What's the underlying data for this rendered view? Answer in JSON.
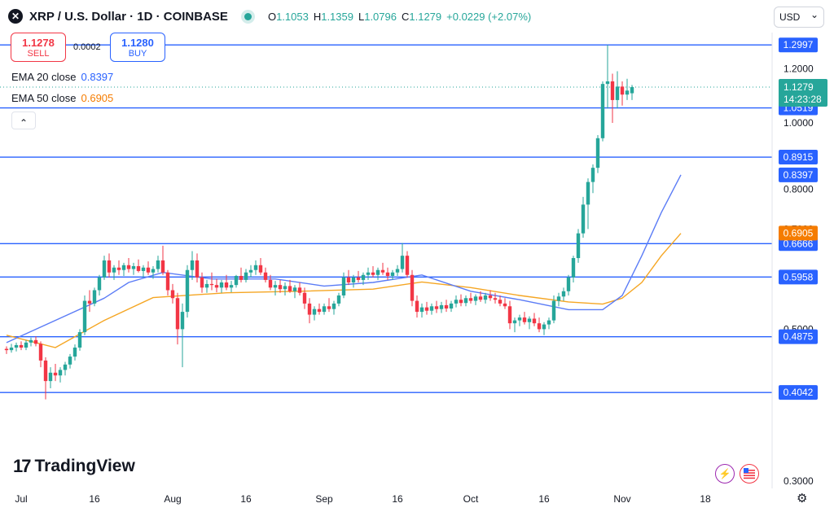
{
  "header": {
    "title": "XRP / U.S. Dollar · 1D · COINBASE",
    "symbol_glyph": "✕",
    "ohlc": [
      {
        "key": "O",
        "value": "1.1053"
      },
      {
        "key": "H",
        "value": "1.1359"
      },
      {
        "key": "L",
        "value": "1.0796"
      },
      {
        "key": "C",
        "value": "1.1279"
      },
      {
        "key": "",
        "value": "+0.0229 (+2.07%)"
      }
    ]
  },
  "currency": {
    "label": "USD",
    "chevron": "⌄"
  },
  "trade": {
    "sell_price": "1.1278",
    "sell_label": "SELL",
    "buy_price": "1.1280",
    "buy_label": "BUY",
    "spread": "0.0002"
  },
  "indicators": [
    {
      "label": "EMA 20 close",
      "value": "0.8397",
      "color": "#2962ff"
    },
    {
      "label": "EMA 50 close",
      "value": "0.6905",
      "color": "#f57c00"
    }
  ],
  "collapse_glyph": "⌃",
  "branding": {
    "logo_mark": "17",
    "logo_text": "TradingView"
  },
  "footer_icons": {
    "settings": "⚙"
  },
  "colors": {
    "up": "#26a69a",
    "down": "#f23645",
    "level": "#2962ff",
    "ema20": "#5b7cf6",
    "ema50": "#f5a623",
    "accent": "#2962ff"
  },
  "chart_data": {
    "type": "candlestick",
    "title": "XRP / U.S. Dollar · 1D · COINBASE",
    "y_scale": "log",
    "ylim": [
      0.2928,
      1.355
    ],
    "x_range_days": [
      0,
      144
    ],
    "price_ticks": [
      "1.2000",
      "1.0000",
      "0.8000",
      "0.7000",
      "0.5000",
      "0.3000"
    ],
    "time_ticks": [
      {
        "label": "Jul",
        "day": 3
      },
      {
        "label": "16",
        "day": 18
      },
      {
        "label": "Aug",
        "day": 34
      },
      {
        "label": "16",
        "day": 49
      },
      {
        "label": "Sep",
        "day": 65
      },
      {
        "label": "16",
        "day": 80
      },
      {
        "label": "Oct",
        "day": 95
      },
      {
        "label": "16",
        "day": 110
      },
      {
        "label": "Nov",
        "day": 126
      },
      {
        "label": "18",
        "day": 143
      }
    ],
    "levels": [
      {
        "value": 1.2997,
        "label": "1.2997"
      },
      {
        "value": 1.0519,
        "label": "1.0519"
      },
      {
        "value": 0.8915,
        "label": "0.8915"
      },
      {
        "value": 0.6666,
        "label": "0.6666"
      },
      {
        "value": 0.5958,
        "label": "0.5958"
      },
      {
        "value": 0.4875,
        "label": "0.4875"
      },
      {
        "value": 0.4042,
        "label": "0.4042"
      }
    ],
    "last_price": {
      "value": 1.1279,
      "label": "1.1279",
      "countdown": "14:23:28"
    },
    "ema_tags": [
      {
        "value": 0.8397,
        "label": "0.8397",
        "series": "EMA 20 close"
      },
      {
        "value": 0.6905,
        "label": "0.6905",
        "series": "EMA 50 close"
      }
    ],
    "candles": [
      [
        0.468,
        0.472,
        0.46,
        0.466
      ],
      [
        0.466,
        0.476,
        0.462,
        0.47
      ],
      [
        0.47,
        0.478,
        0.464,
        0.474
      ],
      [
        0.474,
        0.48,
        0.466,
        0.47
      ],
      [
        0.47,
        0.482,
        0.466,
        0.478
      ],
      [
        0.478,
        0.486,
        0.472,
        0.482
      ],
      [
        0.482,
        0.488,
        0.472,
        0.476
      ],
      [
        0.476,
        0.48,
        0.44,
        0.45
      ],
      [
        0.45,
        0.455,
        0.395,
        0.42
      ],
      [
        0.42,
        0.44,
        0.41,
        0.432
      ],
      [
        0.432,
        0.445,
        0.42,
        0.428
      ],
      [
        0.428,
        0.44,
        0.418,
        0.436
      ],
      [
        0.436,
        0.448,
        0.428,
        0.444
      ],
      [
        0.444,
        0.46,
        0.438,
        0.456
      ],
      [
        0.456,
        0.475,
        0.45,
        0.47
      ],
      [
        0.47,
        0.5,
        0.465,
        0.495
      ],
      [
        0.495,
        0.56,
        0.49,
        0.55
      ],
      [
        0.55,
        0.57,
        0.53,
        0.545
      ],
      [
        0.545,
        0.575,
        0.54,
        0.57
      ],
      [
        0.57,
        0.6,
        0.56,
        0.595
      ],
      [
        0.595,
        0.64,
        0.59,
        0.63
      ],
      [
        0.63,
        0.645,
        0.595,
        0.605
      ],
      [
        0.605,
        0.62,
        0.59,
        0.615
      ],
      [
        0.615,
        0.63,
        0.6,
        0.61
      ],
      [
        0.61,
        0.625,
        0.598,
        0.62
      ],
      [
        0.62,
        0.635,
        0.605,
        0.612
      ],
      [
        0.612,
        0.625,
        0.6,
        0.618
      ],
      [
        0.618,
        0.632,
        0.605,
        0.608
      ],
      [
        0.608,
        0.62,
        0.595,
        0.615
      ],
      [
        0.615,
        0.628,
        0.6,
        0.605
      ],
      [
        0.605,
        0.618,
        0.592,
        0.612
      ],
      [
        0.612,
        0.64,
        0.605,
        0.63
      ],
      [
        0.63,
        0.662,
        0.6,
        0.605
      ],
      [
        0.605,
        0.61,
        0.56,
        0.57
      ],
      [
        0.57,
        0.582,
        0.545,
        0.555
      ],
      [
        0.555,
        0.565,
        0.475,
        0.5
      ],
      [
        0.5,
        0.545,
        0.44,
        0.53
      ],
      [
        0.53,
        0.62,
        0.52,
        0.61
      ],
      [
        0.61,
        0.65,
        0.59,
        0.63
      ],
      [
        0.63,
        0.645,
        0.585,
        0.595
      ],
      [
        0.595,
        0.605,
        0.565,
        0.575
      ],
      [
        0.575,
        0.59,
        0.565,
        0.582
      ],
      [
        0.582,
        0.605,
        0.57,
        0.58
      ],
      [
        0.58,
        0.592,
        0.566,
        0.575
      ],
      [
        0.575,
        0.59,
        0.565,
        0.585
      ],
      [
        0.585,
        0.6,
        0.57,
        0.575
      ],
      [
        0.575,
        0.588,
        0.566,
        0.58
      ],
      [
        0.58,
        0.6,
        0.575,
        0.598
      ],
      [
        0.598,
        0.615,
        0.585,
        0.59
      ],
      [
        0.59,
        0.612,
        0.585,
        0.605
      ],
      [
        0.605,
        0.62,
        0.595,
        0.61
      ],
      [
        0.61,
        0.63,
        0.6,
        0.62
      ],
      [
        0.62,
        0.635,
        0.6,
        0.605
      ],
      [
        0.605,
        0.615,
        0.585,
        0.59
      ],
      [
        0.59,
        0.6,
        0.57,
        0.575
      ],
      [
        0.575,
        0.588,
        0.56,
        0.58
      ],
      [
        0.58,
        0.59,
        0.565,
        0.572
      ],
      [
        0.572,
        0.585,
        0.56,
        0.578
      ],
      [
        0.578,
        0.59,
        0.565,
        0.568
      ],
      [
        0.568,
        0.58,
        0.555,
        0.575
      ],
      [
        0.575,
        0.585,
        0.56,
        0.565
      ],
      [
        0.565,
        0.575,
        0.535,
        0.545
      ],
      [
        0.545,
        0.555,
        0.51,
        0.525
      ],
      [
        0.525,
        0.54,
        0.515,
        0.535
      ],
      [
        0.535,
        0.545,
        0.525,
        0.53
      ],
      [
        0.53,
        0.545,
        0.525,
        0.54
      ],
      [
        0.54,
        0.555,
        0.53,
        0.535
      ],
      [
        0.535,
        0.55,
        0.525,
        0.545
      ],
      [
        0.545,
        0.565,
        0.54,
        0.56
      ],
      [
        0.56,
        0.605,
        0.555,
        0.595
      ],
      [
        0.595,
        0.61,
        0.58,
        0.585
      ],
      [
        0.585,
        0.6,
        0.575,
        0.595
      ],
      [
        0.595,
        0.608,
        0.585,
        0.59
      ],
      [
        0.59,
        0.605,
        0.58,
        0.6
      ],
      [
        0.6,
        0.615,
        0.59,
        0.605
      ],
      [
        0.605,
        0.618,
        0.595,
        0.6
      ],
      [
        0.6,
        0.615,
        0.59,
        0.61
      ],
      [
        0.61,
        0.625,
        0.6,
        0.605
      ],
      [
        0.605,
        0.615,
        0.59,
        0.598
      ],
      [
        0.598,
        0.61,
        0.59,
        0.605
      ],
      [
        0.605,
        0.62,
        0.598,
        0.612
      ],
      [
        0.612,
        0.668,
        0.605,
        0.64
      ],
      [
        0.64,
        0.65,
        0.595,
        0.6
      ],
      [
        0.6,
        0.61,
        0.54,
        0.55
      ],
      [
        0.55,
        0.56,
        0.52,
        0.53
      ],
      [
        0.53,
        0.545,
        0.52,
        0.538
      ],
      [
        0.538,
        0.548,
        0.525,
        0.532
      ],
      [
        0.532,
        0.545,
        0.525,
        0.54
      ],
      [
        0.54,
        0.55,
        0.528,
        0.535
      ],
      [
        0.535,
        0.548,
        0.528,
        0.542
      ],
      [
        0.542,
        0.552,
        0.53,
        0.536
      ],
      [
        0.536,
        0.55,
        0.53,
        0.545
      ],
      [
        0.545,
        0.56,
        0.538,
        0.552
      ],
      [
        0.552,
        0.562,
        0.54,
        0.546
      ],
      [
        0.546,
        0.56,
        0.54,
        0.555
      ],
      [
        0.555,
        0.565,
        0.545,
        0.55
      ],
      [
        0.55,
        0.562,
        0.542,
        0.558
      ],
      [
        0.558,
        0.568,
        0.548,
        0.552
      ],
      [
        0.552,
        0.565,
        0.545,
        0.56
      ],
      [
        0.56,
        0.57,
        0.55,
        0.555
      ],
      [
        0.555,
        0.565,
        0.545,
        0.552
      ],
      [
        0.552,
        0.56,
        0.54,
        0.545
      ],
      [
        0.545,
        0.555,
        0.535,
        0.54
      ],
      [
        0.54,
        0.55,
        0.5,
        0.51
      ],
      [
        0.51,
        0.52,
        0.495,
        0.515
      ],
      [
        0.515,
        0.525,
        0.505,
        0.52
      ],
      [
        0.52,
        0.53,
        0.508,
        0.512
      ],
      [
        0.512,
        0.522,
        0.5,
        0.518
      ],
      [
        0.518,
        0.528,
        0.505,
        0.51
      ],
      [
        0.51,
        0.52,
        0.495,
        0.5
      ],
      [
        0.5,
        0.512,
        0.49,
        0.508
      ],
      [
        0.508,
        0.52,
        0.5,
        0.515
      ],
      [
        0.515,
        0.56,
        0.51,
        0.55
      ],
      [
        0.55,
        0.565,
        0.54,
        0.558
      ],
      [
        0.558,
        0.575,
        0.55,
        0.568
      ],
      [
        0.568,
        0.6,
        0.56,
        0.595
      ],
      [
        0.595,
        0.64,
        0.585,
        0.635
      ],
      [
        0.635,
        0.7,
        0.625,
        0.69
      ],
      [
        0.69,
        0.78,
        0.68,
        0.76
      ],
      [
        0.76,
        0.83,
        0.7,
        0.82
      ],
      [
        0.82,
        0.87,
        0.79,
        0.86
      ],
      [
        0.86,
        0.96,
        0.845,
        0.95
      ],
      [
        0.95,
        1.15,
        0.94,
        1.14
      ],
      [
        1.14,
        1.3,
        1.05,
        1.15
      ],
      [
        1.15,
        1.18,
        1.0,
        1.08
      ],
      [
        1.08,
        1.19,
        1.05,
        1.13
      ],
      [
        1.13,
        1.15,
        1.06,
        1.1
      ],
      [
        1.1,
        1.16,
        1.08,
        1.115
      ],
      [
        1.105,
        1.136,
        1.08,
        1.128
      ]
    ],
    "ema20": [
      [
        0,
        0.478
      ],
      [
        20,
        0.555
      ],
      [
        25,
        0.585
      ],
      [
        32,
        0.605
      ],
      [
        42,
        0.592
      ],
      [
        55,
        0.592
      ],
      [
        65,
        0.578
      ],
      [
        75,
        0.585
      ],
      [
        85,
        0.6
      ],
      [
        95,
        0.568
      ],
      [
        105,
        0.552
      ],
      [
        115,
        0.534
      ],
      [
        122,
        0.534
      ],
      [
        126,
        0.56
      ],
      [
        130,
        0.64
      ],
      [
        134,
        0.74
      ],
      [
        138,
        0.84
      ]
    ],
    "ema50": [
      [
        0,
        0.49
      ],
      [
        10,
        0.47
      ],
      [
        20,
        0.515
      ],
      [
        30,
        0.556
      ],
      [
        45,
        0.565
      ],
      [
        60,
        0.568
      ],
      [
        75,
        0.572
      ],
      [
        85,
        0.586
      ],
      [
        95,
        0.575
      ],
      [
        105,
        0.56
      ],
      [
        115,
        0.548
      ],
      [
        122,
        0.544
      ],
      [
        126,
        0.555
      ],
      [
        130,
        0.585
      ],
      [
        134,
        0.64
      ],
      [
        138,
        0.69
      ]
    ]
  }
}
